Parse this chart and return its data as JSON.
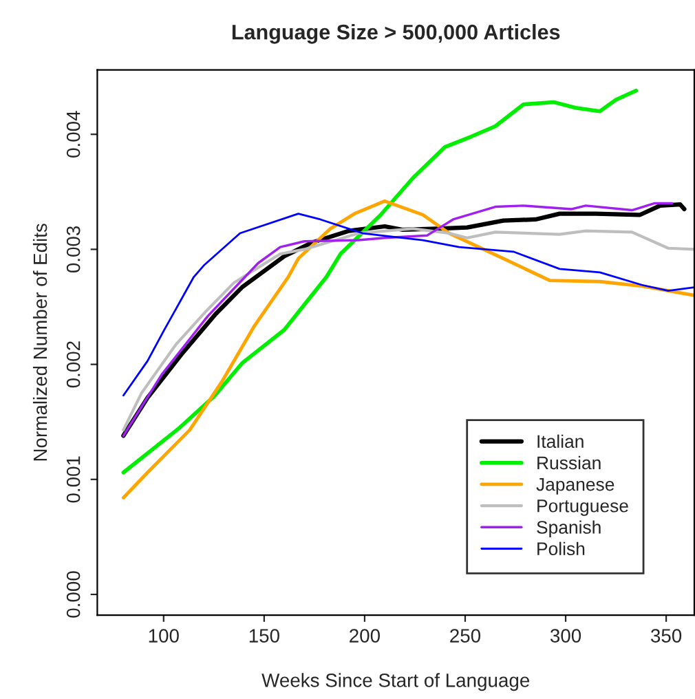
{
  "chart_data": {
    "type": "line",
    "title": "Language Size > 500,000 Articles",
    "xlabel": "Weeks Since Start of Language",
    "ylabel": "Normalized Number of Edits",
    "xlim": [
      67,
      364
    ],
    "xticks": [
      100,
      150,
      200,
      250,
      300,
      350
    ],
    "ylim": [
      -0.00018,
      0.00456
    ],
    "yticks": [
      {
        "value": 0,
        "label": "0.000"
      },
      {
        "value": 0.001,
        "label": "0.001"
      },
      {
        "value": 0.002,
        "label": "0.002"
      },
      {
        "value": 0.003,
        "label": "0.003"
      },
      {
        "value": 0.004,
        "label": "0.004"
      }
    ],
    "grid": false,
    "legend": "bottom right",
    "marker": "none",
    "line_style": "solid",
    "series": [
      {
        "name": "Italian",
        "color": "#000000",
        "x": [
          80,
          92,
          109,
          126,
          139,
          160,
          174,
          192,
          210,
          219,
          236,
          251,
          269,
          285,
          297,
          315,
          337,
          347,
          357,
          359
        ],
        "values": [
          0.00138,
          0.00171,
          0.00209,
          0.00244,
          0.00267,
          0.00294,
          0.00306,
          0.00316,
          0.0032,
          0.00317,
          0.00318,
          0.00319,
          0.00325,
          0.00326,
          0.00331,
          0.00331,
          0.0033,
          0.00338,
          0.00339,
          0.00335
        ]
      },
      {
        "name": "Russian",
        "color": "#00ee00",
        "x": [
          80,
          108,
          125,
          139,
          160,
          181,
          188,
          208,
          224,
          240,
          253,
          265,
          279,
          294,
          305,
          317,
          325,
          335
        ],
        "values": [
          0.00106,
          0.00145,
          0.00172,
          0.00201,
          0.0023,
          0.00276,
          0.00296,
          0.0033,
          0.00362,
          0.00389,
          0.00398,
          0.00407,
          0.00426,
          0.00428,
          0.00423,
          0.0042,
          0.0043,
          0.00438
        ]
      },
      {
        "name": "Japanese",
        "color": "#ffa500",
        "x": [
          80,
          92,
          113,
          129,
          145,
          162,
          167,
          183,
          195,
          210,
          229,
          242,
          269,
          292,
          317,
          338,
          364
        ],
        "values": [
          0.00084,
          0.00106,
          0.00143,
          0.00185,
          0.00233,
          0.00276,
          0.00292,
          0.00318,
          0.00331,
          0.00342,
          0.0033,
          0.00314,
          0.00292,
          0.00273,
          0.00272,
          0.00268,
          0.0026
        ]
      },
      {
        "name": "Portuguese",
        "color": "#bebebe",
        "x": [
          80,
          89,
          106,
          121,
          135,
          158,
          170,
          197,
          224,
          242,
          251,
          265,
          297,
          310,
          333,
          351,
          364
        ],
        "values": [
          0.00143,
          0.00175,
          0.00217,
          0.00246,
          0.00271,
          0.00296,
          0.003,
          0.00314,
          0.00318,
          0.00314,
          0.0031,
          0.00315,
          0.00313,
          0.00316,
          0.00315,
          0.00301,
          0.003
        ]
      },
      {
        "name": "Spanish",
        "color": "#a020f0",
        "x": [
          80,
          99,
          122,
          147,
          158,
          170,
          197,
          210,
          231,
          244,
          265,
          279,
          303,
          310,
          333,
          344,
          353
        ],
        "values": [
          0.00138,
          0.00191,
          0.00242,
          0.00288,
          0.00302,
          0.00307,
          0.00308,
          0.0031,
          0.00312,
          0.00326,
          0.00337,
          0.00338,
          0.00335,
          0.00338,
          0.00334,
          0.0034,
          0.0034
        ]
      },
      {
        "name": "Polish",
        "color": "#0000ff",
        "x": [
          80,
          92,
          100,
          115,
          120,
          138,
          167,
          178,
          199,
          229,
          247,
          274,
          297,
          317,
          338,
          351,
          364
        ],
        "values": [
          0.00173,
          0.00203,
          0.00229,
          0.00276,
          0.00286,
          0.00314,
          0.00331,
          0.00326,
          0.00314,
          0.00308,
          0.00302,
          0.00298,
          0.00283,
          0.0028,
          0.00269,
          0.00264,
          0.00267
        ]
      }
    ]
  }
}
